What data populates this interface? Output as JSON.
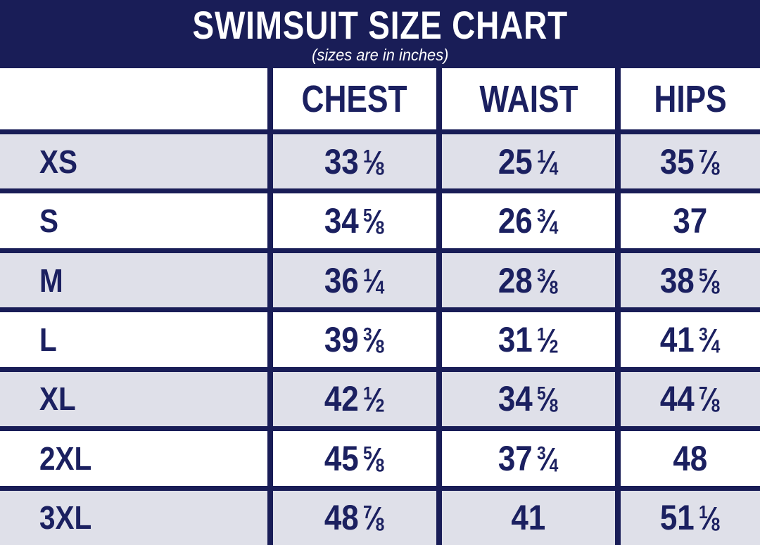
{
  "header": {
    "title": "SWIMSUIT SIZE CHART",
    "subtitle": "(sizes are in inches)"
  },
  "colors": {
    "navy": "#191d57",
    "text": "#1b2060",
    "stripe": "#dfe0e9",
    "white": "#ffffff"
  },
  "chart_data": {
    "type": "table",
    "title": "SWIMSUIT SIZE CHART",
    "subtitle": "(sizes are in inches)",
    "units": "inches",
    "columns": [
      "CHEST",
      "WAIST",
      "HIPS"
    ],
    "rows": [
      {
        "size": "XS",
        "values": [
          "33 1/8",
          "25 1/4",
          "35 7/8"
        ]
      },
      {
        "size": "S",
        "values": [
          "34 5/8",
          "26 3/4",
          "37"
        ]
      },
      {
        "size": "M",
        "values": [
          "36 1/4",
          "28 3/8",
          "38 5/8"
        ]
      },
      {
        "size": "L",
        "values": [
          "39 3/8",
          "31 1/2",
          "41 3/4"
        ]
      },
      {
        "size": "XL",
        "values": [
          "42 1/2",
          "34 5/8",
          "44 7/8"
        ]
      },
      {
        "size": "2XL",
        "values": [
          "45 5/8",
          "37 3/4",
          "48"
        ]
      },
      {
        "size": "3XL",
        "values": [
          "48 7/8",
          "41",
          "51 1/8"
        ]
      }
    ]
  }
}
